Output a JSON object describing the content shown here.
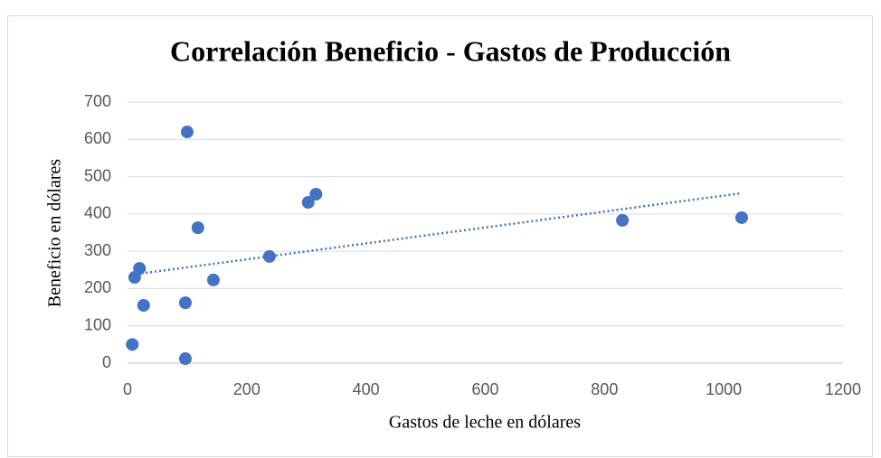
{
  "chart_data": {
    "type": "scatter",
    "title": "Correlación Beneficio - Gastos de Producción",
    "x_label": "Gastos de leche en dólares",
    "y_label": "Beneficio en  dólares",
    "x": [
      8,
      12,
      20,
      27,
      97,
      97,
      100,
      118,
      144,
      238,
      303,
      316,
      830,
      1030
    ],
    "values": [
      50,
      230,
      254,
      155,
      162,
      12,
      620,
      363,
      223,
      286,
      431,
      453,
      383,
      390
    ],
    "color": "#4472c4",
    "trendline": true,
    "xlim": [
      0,
      1200
    ],
    "xticks": [
      0,
      200,
      400,
      600,
      800,
      1000,
      1200
    ],
    "ylim": [
      0,
      700
    ],
    "yticks": [
      0,
      100,
      200,
      300,
      400,
      500,
      600,
      700
    ],
    "grid": true
  }
}
